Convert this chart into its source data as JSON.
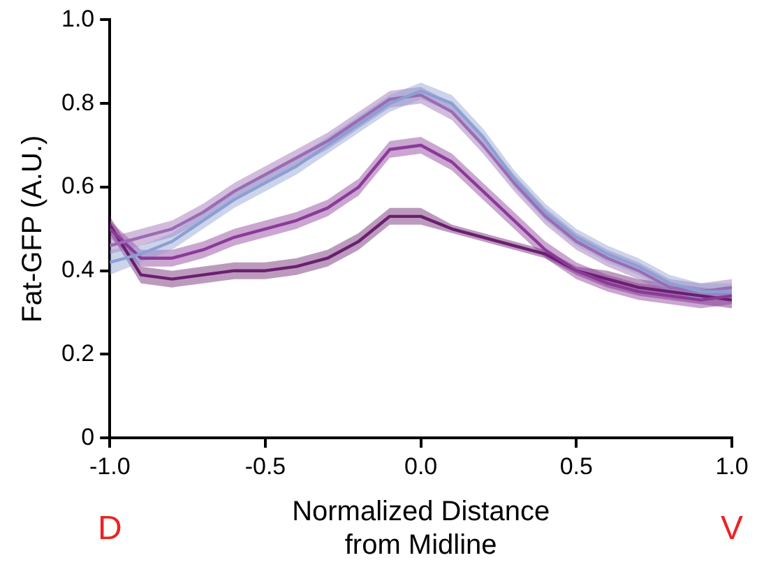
{
  "chart_data": {
    "type": "line",
    "xlabel": "Normalized Distance\nfrom Midline",
    "ylabel": "Fat-GFP (A.U.)",
    "x": [
      -1,
      -0.9,
      -0.8,
      -0.7,
      -0.6,
      -0.5,
      -0.4,
      -0.3,
      -0.2,
      -0.1,
      0,
      0.1,
      0.2,
      0.3,
      0.4,
      0.5,
      0.6,
      0.7,
      0.8,
      0.9,
      1
    ],
    "series": [
      {
        "color": "#8d9fd2",
        "values": [
          0.42,
          0.44,
          0.47,
          0.52,
          0.57,
          0.61,
          0.65,
          0.7,
          0.75,
          0.8,
          0.83,
          0.8,
          0.72,
          0.62,
          0.54,
          0.48,
          0.44,
          0.41,
          0.37,
          0.35,
          0.35
        ],
        "lower": [
          0.39,
          0.42,
          0.45,
          0.5,
          0.55,
          0.59,
          0.63,
          0.68,
          0.73,
          0.78,
          0.81,
          0.78,
          0.7,
          0.6,
          0.52,
          0.46,
          0.42,
          0.39,
          0.35,
          0.33,
          0.33
        ],
        "upper": [
          0.45,
          0.46,
          0.49,
          0.54,
          0.59,
          0.63,
          0.67,
          0.72,
          0.77,
          0.82,
          0.85,
          0.82,
          0.74,
          0.64,
          0.56,
          0.5,
          0.46,
          0.43,
          0.39,
          0.37,
          0.37
        ]
      },
      {
        "color": "#9b6bb3",
        "values": [
          0.46,
          0.48,
          0.5,
          0.54,
          0.59,
          0.63,
          0.67,
          0.71,
          0.76,
          0.81,
          0.82,
          0.78,
          0.7,
          0.61,
          0.53,
          0.47,
          0.43,
          0.4,
          0.36,
          0.35,
          0.36
        ],
        "lower": [
          0.44,
          0.46,
          0.48,
          0.52,
          0.57,
          0.61,
          0.65,
          0.69,
          0.74,
          0.79,
          0.8,
          0.76,
          0.68,
          0.59,
          0.51,
          0.45,
          0.41,
          0.38,
          0.34,
          0.33,
          0.34
        ],
        "upper": [
          0.48,
          0.5,
          0.52,
          0.56,
          0.61,
          0.65,
          0.69,
          0.73,
          0.78,
          0.83,
          0.84,
          0.8,
          0.72,
          0.63,
          0.55,
          0.49,
          0.45,
          0.42,
          0.38,
          0.37,
          0.38
        ]
      },
      {
        "color": "#8a3a98",
        "values": [
          0.5,
          0.43,
          0.43,
          0.45,
          0.48,
          0.5,
          0.52,
          0.55,
          0.6,
          0.69,
          0.7,
          0.66,
          0.59,
          0.52,
          0.45,
          0.4,
          0.37,
          0.35,
          0.34,
          0.33,
          0.34
        ],
        "lower": [
          0.48,
          0.41,
          0.41,
          0.43,
          0.46,
          0.48,
          0.5,
          0.53,
          0.58,
          0.67,
          0.68,
          0.64,
          0.57,
          0.5,
          0.43,
          0.38,
          0.35,
          0.33,
          0.32,
          0.31,
          0.32
        ],
        "upper": [
          0.52,
          0.45,
          0.45,
          0.47,
          0.5,
          0.52,
          0.54,
          0.57,
          0.62,
          0.71,
          0.72,
          0.68,
          0.61,
          0.54,
          0.47,
          0.42,
          0.39,
          0.37,
          0.36,
          0.35,
          0.36
        ]
      },
      {
        "color": "#6a1f6f",
        "values": [
          0.51,
          0.39,
          0.38,
          0.39,
          0.4,
          0.4,
          0.41,
          0.43,
          0.47,
          0.53,
          0.53,
          0.5,
          0.48,
          0.46,
          0.44,
          0.4,
          0.38,
          0.36,
          0.35,
          0.34,
          0.33
        ],
        "lower": [
          0.49,
          0.37,
          0.36,
          0.37,
          0.38,
          0.38,
          0.39,
          0.41,
          0.45,
          0.51,
          0.51,
          0.49,
          0.47,
          0.45,
          0.43,
          0.39,
          0.36,
          0.34,
          0.33,
          0.32,
          0.31
        ],
        "upper": [
          0.53,
          0.41,
          0.4,
          0.41,
          0.42,
          0.42,
          0.43,
          0.45,
          0.49,
          0.55,
          0.55,
          0.51,
          0.49,
          0.47,
          0.45,
          0.41,
          0.4,
          0.38,
          0.37,
          0.36,
          0.35
        ]
      }
    ],
    "xlim": [
      -1,
      1
    ],
    "ylim": [
      0,
      1
    ],
    "xticks": [
      {
        "value": -1,
        "label": "-1.0"
      },
      {
        "value": -0.5,
        "label": "-0.5"
      },
      {
        "value": 0,
        "label": "0.0"
      },
      {
        "value": 0.5,
        "label": "0.5"
      },
      {
        "value": 1,
        "label": "1.0"
      }
    ],
    "yticks": [
      0,
      {
        "value": 0.2,
        "label": "0.2"
      },
      {
        "value": 0.4,
        "label": "0.4"
      },
      {
        "value": 0.6,
        "label": "0.6"
      },
      {
        "value": 0.8,
        "label": "0.8"
      },
      {
        "value": 1,
        "label": "1.0"
      }
    ],
    "annotations": [
      "D",
      "V"
    ],
    "grid": false,
    "legend": false,
    "marker": "none",
    "line_style": "solid"
  }
}
